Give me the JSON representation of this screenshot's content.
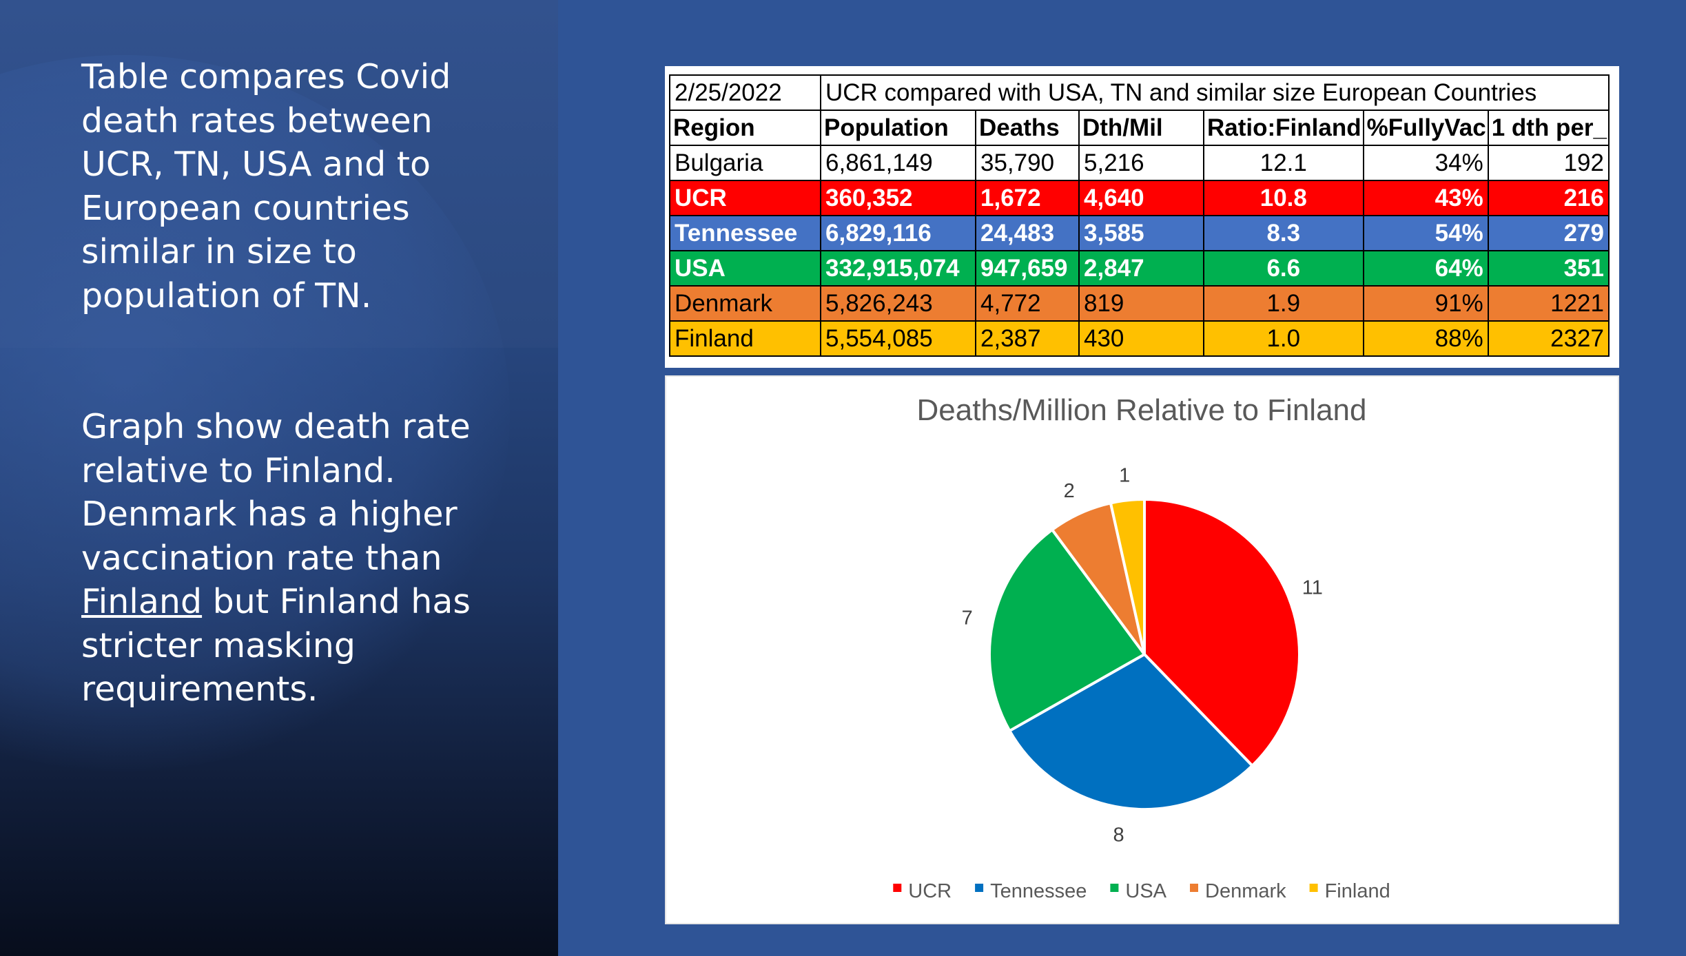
{
  "slide": {
    "paragraph1": "Table compares Covid death rates between UCR, TN, USA and to European countries similar in size to population of TN.",
    "paragraph2_before": "Graph show death rate relative to Finland. Denmark has a higher vaccination rate than ",
    "paragraph2_underlined": "Finland",
    "paragraph2_after": " but Finland has stricter masking requirements."
  },
  "table": {
    "date": "2/25/2022",
    "caption": "UCR compared with USA, TN and similar size European Countries",
    "headers": [
      "Region",
      "Population",
      "Deaths",
      "Dth/Mil",
      "Ratio:Finland",
      "%FullyVac",
      "1 dth per_"
    ],
    "rows": [
      {
        "cells": [
          "Bulgaria",
          "6,861,149",
          "35,790",
          "5,216",
          "12.1",
          "34%",
          "192"
        ],
        "bg": "#ffffff",
        "fg": "#000000",
        "bold": false
      },
      {
        "cells": [
          "UCR",
          "360,352",
          "1,672",
          "4,640",
          "10.8",
          "43%",
          "216"
        ],
        "bg": "#ff0000",
        "fg": "#ffffff",
        "bold": true
      },
      {
        "cells": [
          "Tennessee",
          "6,829,116",
          "24,483",
          "3,585",
          "8.3",
          "54%",
          "279"
        ],
        "bg": "#4472c4",
        "fg": "#ffffff",
        "bold": true
      },
      {
        "cells": [
          "USA",
          "332,915,074",
          "947,659",
          "2,847",
          "6.6",
          "64%",
          "351"
        ],
        "bg": "#00b050",
        "fg": "#ffffff",
        "bold": true
      },
      {
        "cells": [
          "Denmark",
          "5,826,243",
          "4,772",
          "819",
          "1.9",
          "91%",
          "1221"
        ],
        "bg": "#ed7d31",
        "fg": "#000000",
        "bold": false
      },
      {
        "cells": [
          "Finland",
          "5,554,085",
          "2,387",
          "430",
          "1.0",
          "88%",
          "2327"
        ],
        "bg": "#ffc000",
        "fg": "#000000",
        "bold": false
      }
    ]
  },
  "chart_data": {
    "type": "pie",
    "title": "Deaths/Million Relative to Finland",
    "categories": [
      "UCR",
      "Tennessee",
      "USA",
      "Denmark",
      "Finland"
    ],
    "values": [
      10.8,
      8.3,
      6.6,
      1.9,
      1.0
    ],
    "data_labels": [
      "11",
      "8",
      "7",
      "2",
      "1"
    ],
    "colors": [
      "#ff0000",
      "#0070c0",
      "#00b050",
      "#ed7d31",
      "#ffc000"
    ],
    "legend_position": "bottom"
  }
}
